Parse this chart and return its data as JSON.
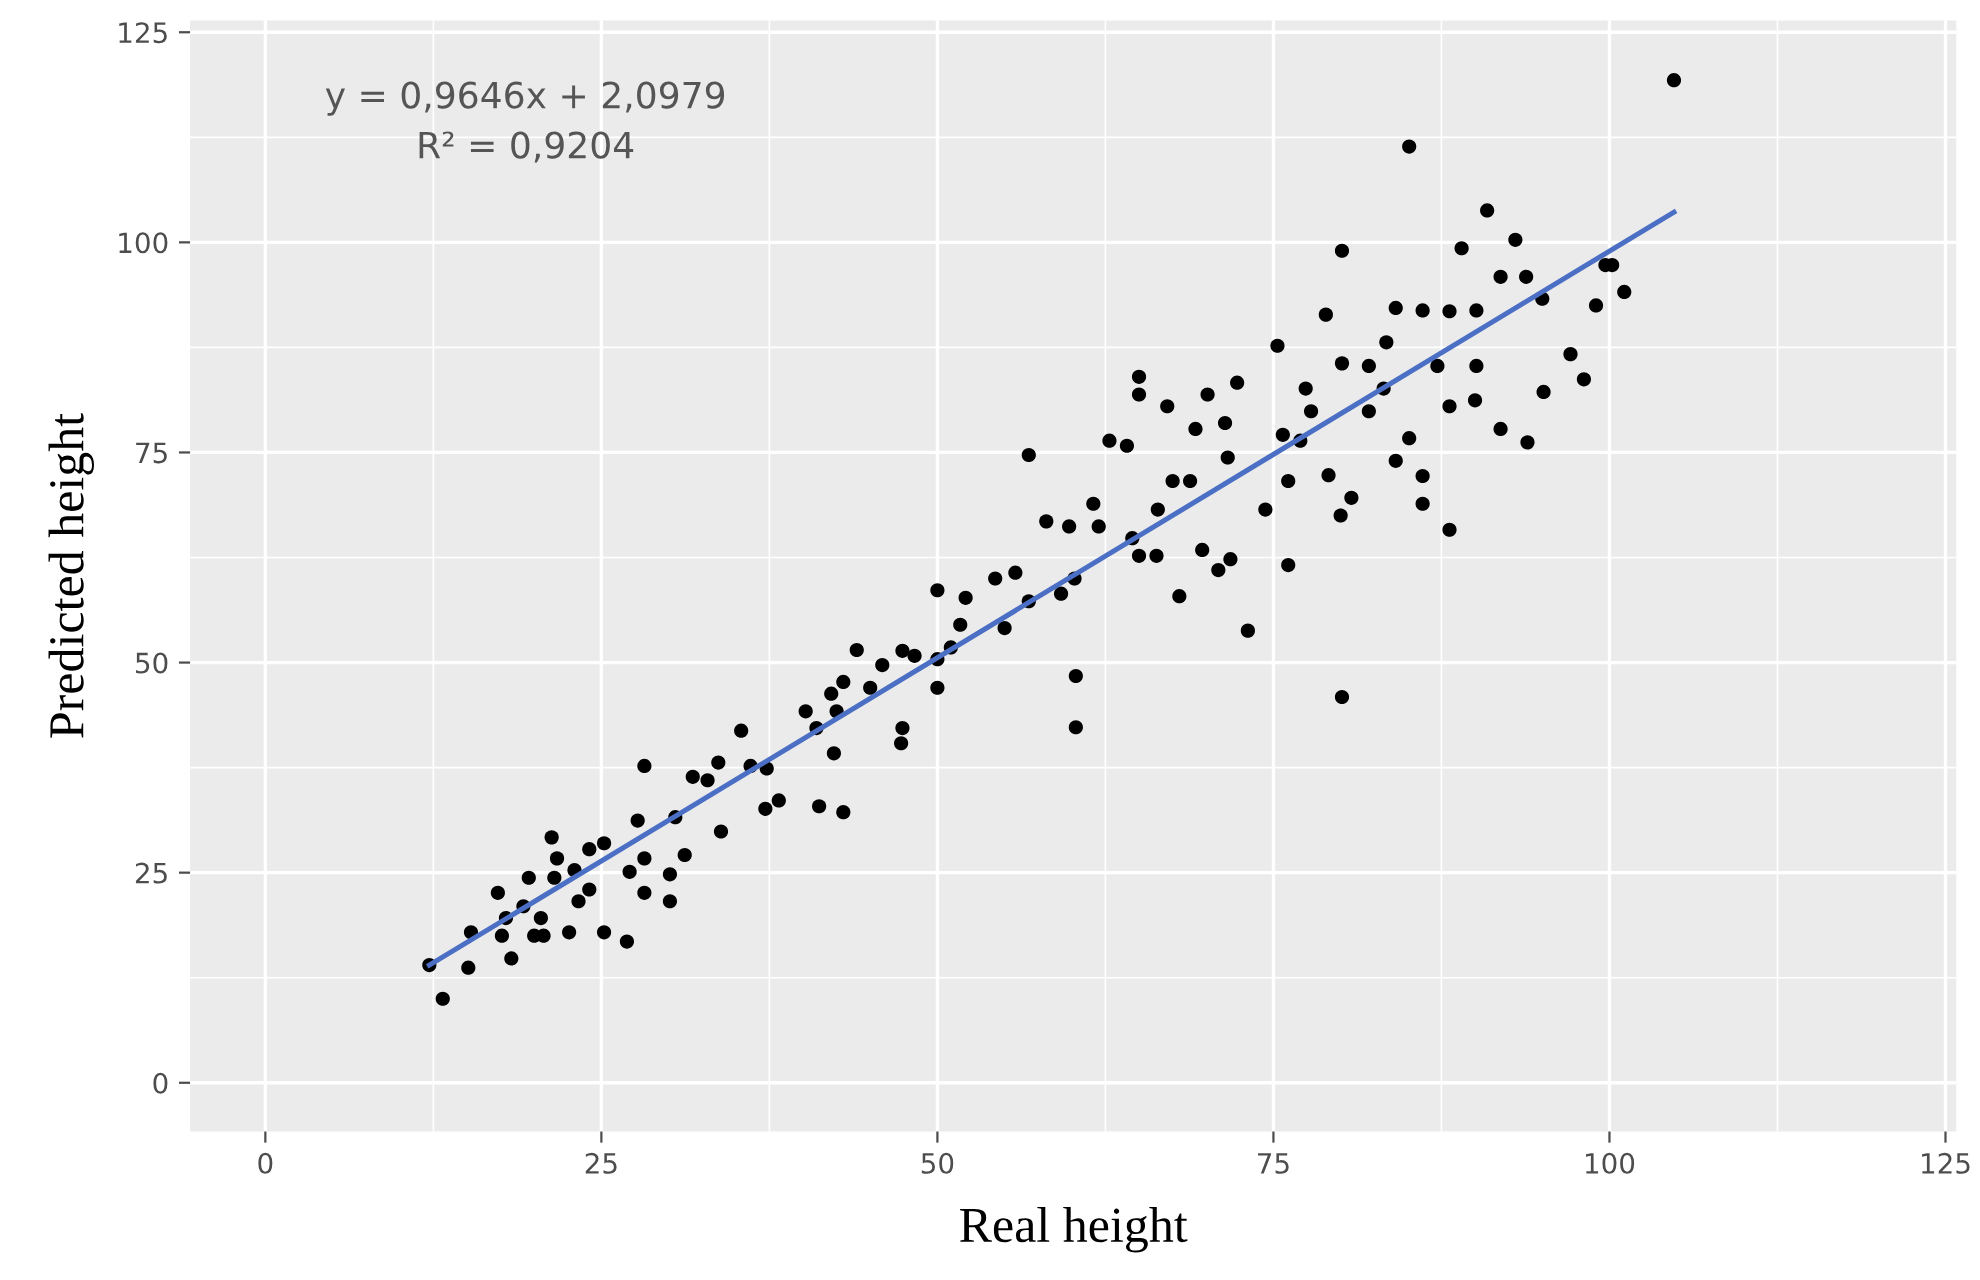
{
  "chart_data": {
    "type": "scatter",
    "xlabel": "Real height",
    "ylabel": "Predicted height",
    "annotations": [
      "y = 0,9646x + 2,0979",
      "R² = 0,9204"
    ],
    "xlim": [
      -5.6,
      125.8
    ],
    "ylim": [
      -5.8,
      126.4
    ],
    "xticks": [
      0,
      25,
      50,
      75,
      100,
      125
    ],
    "yticks": [
      0,
      25,
      50,
      75,
      100,
      125
    ],
    "grid": true,
    "marker": "circle",
    "series": [
      {
        "color": "#000000",
        "x": [
          104.8,
          85.1,
          90.9,
          93.0,
          89.0,
          80.1,
          99.7,
          100.2,
          101.1,
          99.0,
          95.0,
          93.8,
          91.9,
          97.1,
          98.1,
          95.1,
          93.9,
          91.9,
          88.1,
          86.1,
          86.1,
          84.1,
          85.1,
          90.1,
          90.0,
          88.1,
          87.2,
          88.1,
          90.1,
          86.1,
          84.1,
          83.4,
          82.1,
          83.2,
          82.1,
          80.1,
          78.9,
          79.1,
          80.0,
          80.1,
          80.8,
          77.0,
          77.8,
          77.4,
          75.7,
          75.3,
          76.1,
          76.1,
          74.4,
          73.1,
          72.3,
          71.4,
          71.6,
          70.1,
          69.2,
          68.8,
          69.7,
          70.9,
          71.8,
          68.0,
          67.1,
          67.5,
          66.4,
          65.0,
          65.0,
          64.1,
          62.8,
          61.6,
          59.8,
          58.1,
          56.8,
          62.0,
          60.2,
          64.5,
          65.0,
          66.3,
          60.3,
          60.3,
          59.2,
          56.8,
          55.8,
          54.3,
          55.0,
          52.1,
          50.0,
          51.7,
          51.0,
          50.0,
          50.0,
          48.3,
          47.4,
          45.9,
          47.4,
          47.3,
          45.0,
          44.0,
          43.0,
          42.1,
          42.5,
          42.3,
          41.0,
          40.2,
          43.0,
          41.2,
          38.2,
          37.2,
          37.3,
          36.1,
          35.4,
          33.7,
          33.9,
          32.9,
          31.8,
          30.5,
          31.2,
          30.1,
          30.1,
          28.2,
          27.7,
          28.2,
          27.1,
          28.2,
          26.9,
          25.2,
          24.1,
          24.1,
          23.3,
          23.0,
          21.7,
          21.3,
          21.5,
          22.6,
          25.2,
          19.6,
          19.2,
          20.5,
          20.7,
          20.0,
          17.9,
          17.3,
          17.6,
          18.3,
          15.3,
          15.1,
          13.2,
          12.2
        ],
        "values": [
          119.3,
          111.4,
          103.8,
          100.3,
          99.3,
          99.0,
          97.3,
          97.3,
          94.1,
          92.5,
          93.3,
          95.9,
          95.9,
          86.7,
          83.7,
          82.2,
          76.2,
          77.8,
          65.8,
          68.9,
          72.2,
          74.0,
          76.7,
          85.3,
          81.2,
          80.5,
          85.3,
          91.8,
          91.9,
          91.9,
          92.2,
          88.1,
          85.3,
          82.6,
          79.9,
          85.6,
          91.4,
          72.3,
          67.5,
          45.9,
          69.6,
          76.4,
          79.9,
          82.6,
          77.1,
          87.7,
          71.6,
          61.6,
          68.2,
          53.8,
          83.3,
          78.5,
          74.4,
          81.9,
          77.8,
          71.6,
          63.4,
          61.0,
          62.3,
          57.9,
          80.5,
          71.6,
          68.2,
          84.0,
          81.9,
          75.8,
          76.4,
          68.9,
          66.2,
          66.8,
          74.7,
          66.2,
          60.0,
          64.8,
          62.7,
          62.7,
          48.4,
          42.3,
          58.2,
          57.3,
          60.7,
          60.0,
          54.1,
          57.7,
          58.6,
          54.5,
          51.8,
          50.4,
          47.0,
          50.8,
          51.4,
          49.7,
          42.2,
          40.4,
          47.0,
          51.5,
          47.7,
          46.3,
          44.2,
          39.2,
          42.2,
          44.2,
          32.2,
          32.9,
          33.6,
          32.6,
          37.4,
          37.7,
          41.9,
          38.1,
          29.9,
          36.0,
          36.4,
          31.6,
          27.1,
          24.8,
          21.6,
          37.7,
          31.2,
          26.7,
          25.1,
          22.6,
          16.8,
          28.5,
          27.8,
          23.0,
          21.6,
          25.3,
          26.7,
          29.2,
          24.4,
          17.9,
          17.9,
          24.4,
          21.0,
          19.6,
          17.5,
          17.5,
          19.6,
          22.6,
          17.5,
          14.8,
          17.9,
          13.7,
          10.0,
          14.0
        ]
      },
      {
        "type": "line",
        "color": "#4a6fc4",
        "marker": "none",
        "x": [
          12.2,
          104.8
        ],
        "values": [
          14.0,
          103.6
        ]
      }
    ]
  }
}
